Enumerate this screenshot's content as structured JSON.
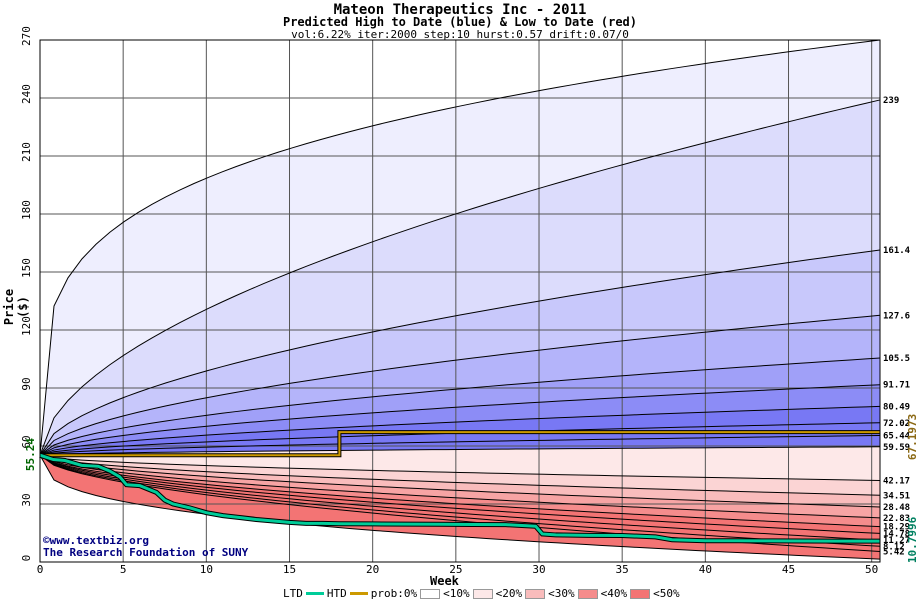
{
  "chart_data": {
    "type": "area",
    "title": "Mateon Therapeutics Inc - 2011",
    "subtitle": "Predicted High to Date (blue) &  Low to Date (red)",
    "params": "vol:6.22% iter:2000 step:10 hurst:0.57 drift:0.07/0",
    "xlabel": "Week",
    "ylabel": "Price ($)",
    "xlim": [
      0,
      50.5
    ],
    "ylim": [
      0,
      270
    ],
    "xticks": [
      0,
      5,
      10,
      15,
      20,
      25,
      30,
      35,
      40,
      45,
      50
    ],
    "yticks": [
      0,
      30,
      60,
      90,
      120,
      150,
      180,
      210,
      240,
      270
    ],
    "grid": true,
    "start_price": 55.24,
    "start_label": "55.24",
    "high_curves_end": [
      270,
      239,
      161.4,
      127.6,
      105.5,
      91.71,
      80.49,
      72.02,
      65.44
    ],
    "high_end_labels": [
      "239",
      "161.4",
      "127.6",
      "105.5",
      "91.71",
      "80.49",
      "72.02",
      "65.44"
    ],
    "low_curves_end": [
      59.59,
      42.17,
      34.51,
      28.48,
      22.83,
      18.29,
      14.78,
      11.27,
      8.12,
      5.42
    ],
    "low_end_labels": [
      "59.59",
      "42.17",
      "34.51",
      "28.48",
      "22.83",
      "18.29",
      "14.78",
      "11.27",
      "8.12",
      "5.42"
    ],
    "htd_series": {
      "name": "HTD",
      "x": [
        0,
        18,
        18,
        50.5
      ],
      "y": [
        55.24,
        55.24,
        67.2,
        67.2
      ],
      "end_label": "67.1973"
    },
    "ltd_series": {
      "name": "LTD",
      "x": [
        0,
        0.8,
        1.5,
        2.5,
        3.5,
        4.2,
        4.8,
        5.2,
        6,
        7,
        7.5,
        8,
        9,
        10,
        11,
        12,
        13,
        15,
        16,
        17,
        18,
        20,
        22,
        24,
        26,
        28,
        29.8,
        30.2,
        31,
        33,
        35,
        37,
        38,
        40,
        42,
        44,
        46,
        48,
        50.5
      ],
      "y": [
        55.24,
        53,
        52.5,
        50,
        49.5,
        47,
        44,
        40,
        39.5,
        36,
        32,
        30,
        28,
        25.5,
        24,
        23,
        22,
        20.5,
        20,
        20,
        19.8,
        19.7,
        19.6,
        19.5,
        19.4,
        19.3,
        18.5,
        14.5,
        14,
        13.8,
        13.7,
        13,
        11.5,
        11,
        11,
        10.9,
        10.85,
        10.8,
        10.8
      ],
      "end_label": "10.7996"
    },
    "colors": {
      "blue_bands": [
        "#eeeefe",
        "#dcdcfc",
        "#c8c8fb",
        "#b4b4fa",
        "#a0a0f8",
        "#8c8cf6",
        "#7878f4"
      ],
      "red_bands": [
        "#fde8e8",
        "#fbd4d4",
        "#f9bcbc",
        "#f7a4a4",
        "#f58c8c",
        "#f37474"
      ],
      "htd": "#cc9900",
      "ltd": "#00cc99",
      "start_label": "#006400",
      "end_label_high": "#8b6914",
      "end_label_low": "#008060"
    }
  },
  "credits": {
    "line1": "©www.textbiz.org",
    "line2": "The Research Foundation of SUNY"
  },
  "legend": {
    "ltd": "LTD",
    "htd": "HTD",
    "prob": "prob:0%",
    "b10": "<10%",
    "b20": "<20%",
    "b30": "<30%",
    "b40": "<40%",
    "b50": "<50%"
  }
}
